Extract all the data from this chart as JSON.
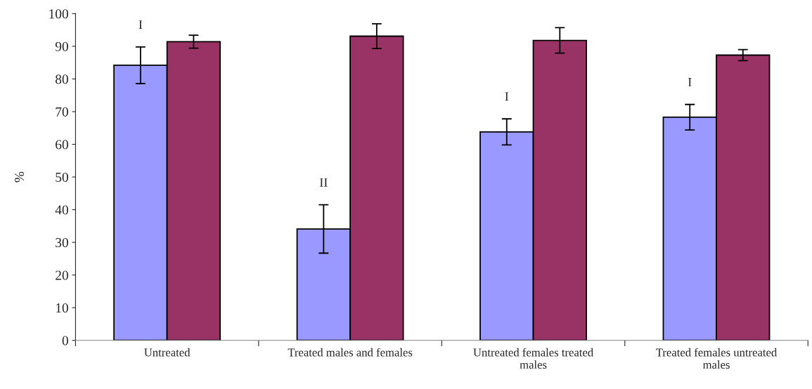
{
  "chart_data": {
    "type": "bar",
    "ylabel": "%",
    "categories": [
      "Untreated",
      "Treated males and females",
      "Untreated females treated males",
      "Treated females untreated males"
    ],
    "series": [
      {
        "color": "#9999ff",
        "values": [
          84.2,
          34.1,
          63.8,
          68.3
        ],
        "errors": [
          5.6,
          7.4,
          4.0,
          3.9
        ]
      },
      {
        "color": "#993366",
        "values": [
          91.4,
          93.1,
          91.8,
          87.3
        ],
        "errors": [
          2.0,
          3.8,
          3.9,
          1.7
        ]
      }
    ],
    "ylim": [
      0,
      100
    ],
    "yticks": [
      0,
      10,
      20,
      30,
      40,
      50,
      60,
      70,
      80,
      90,
      100
    ],
    "annotations": [
      "I",
      "II",
      "I",
      "I"
    ],
    "grid": false,
    "legend": false
  }
}
